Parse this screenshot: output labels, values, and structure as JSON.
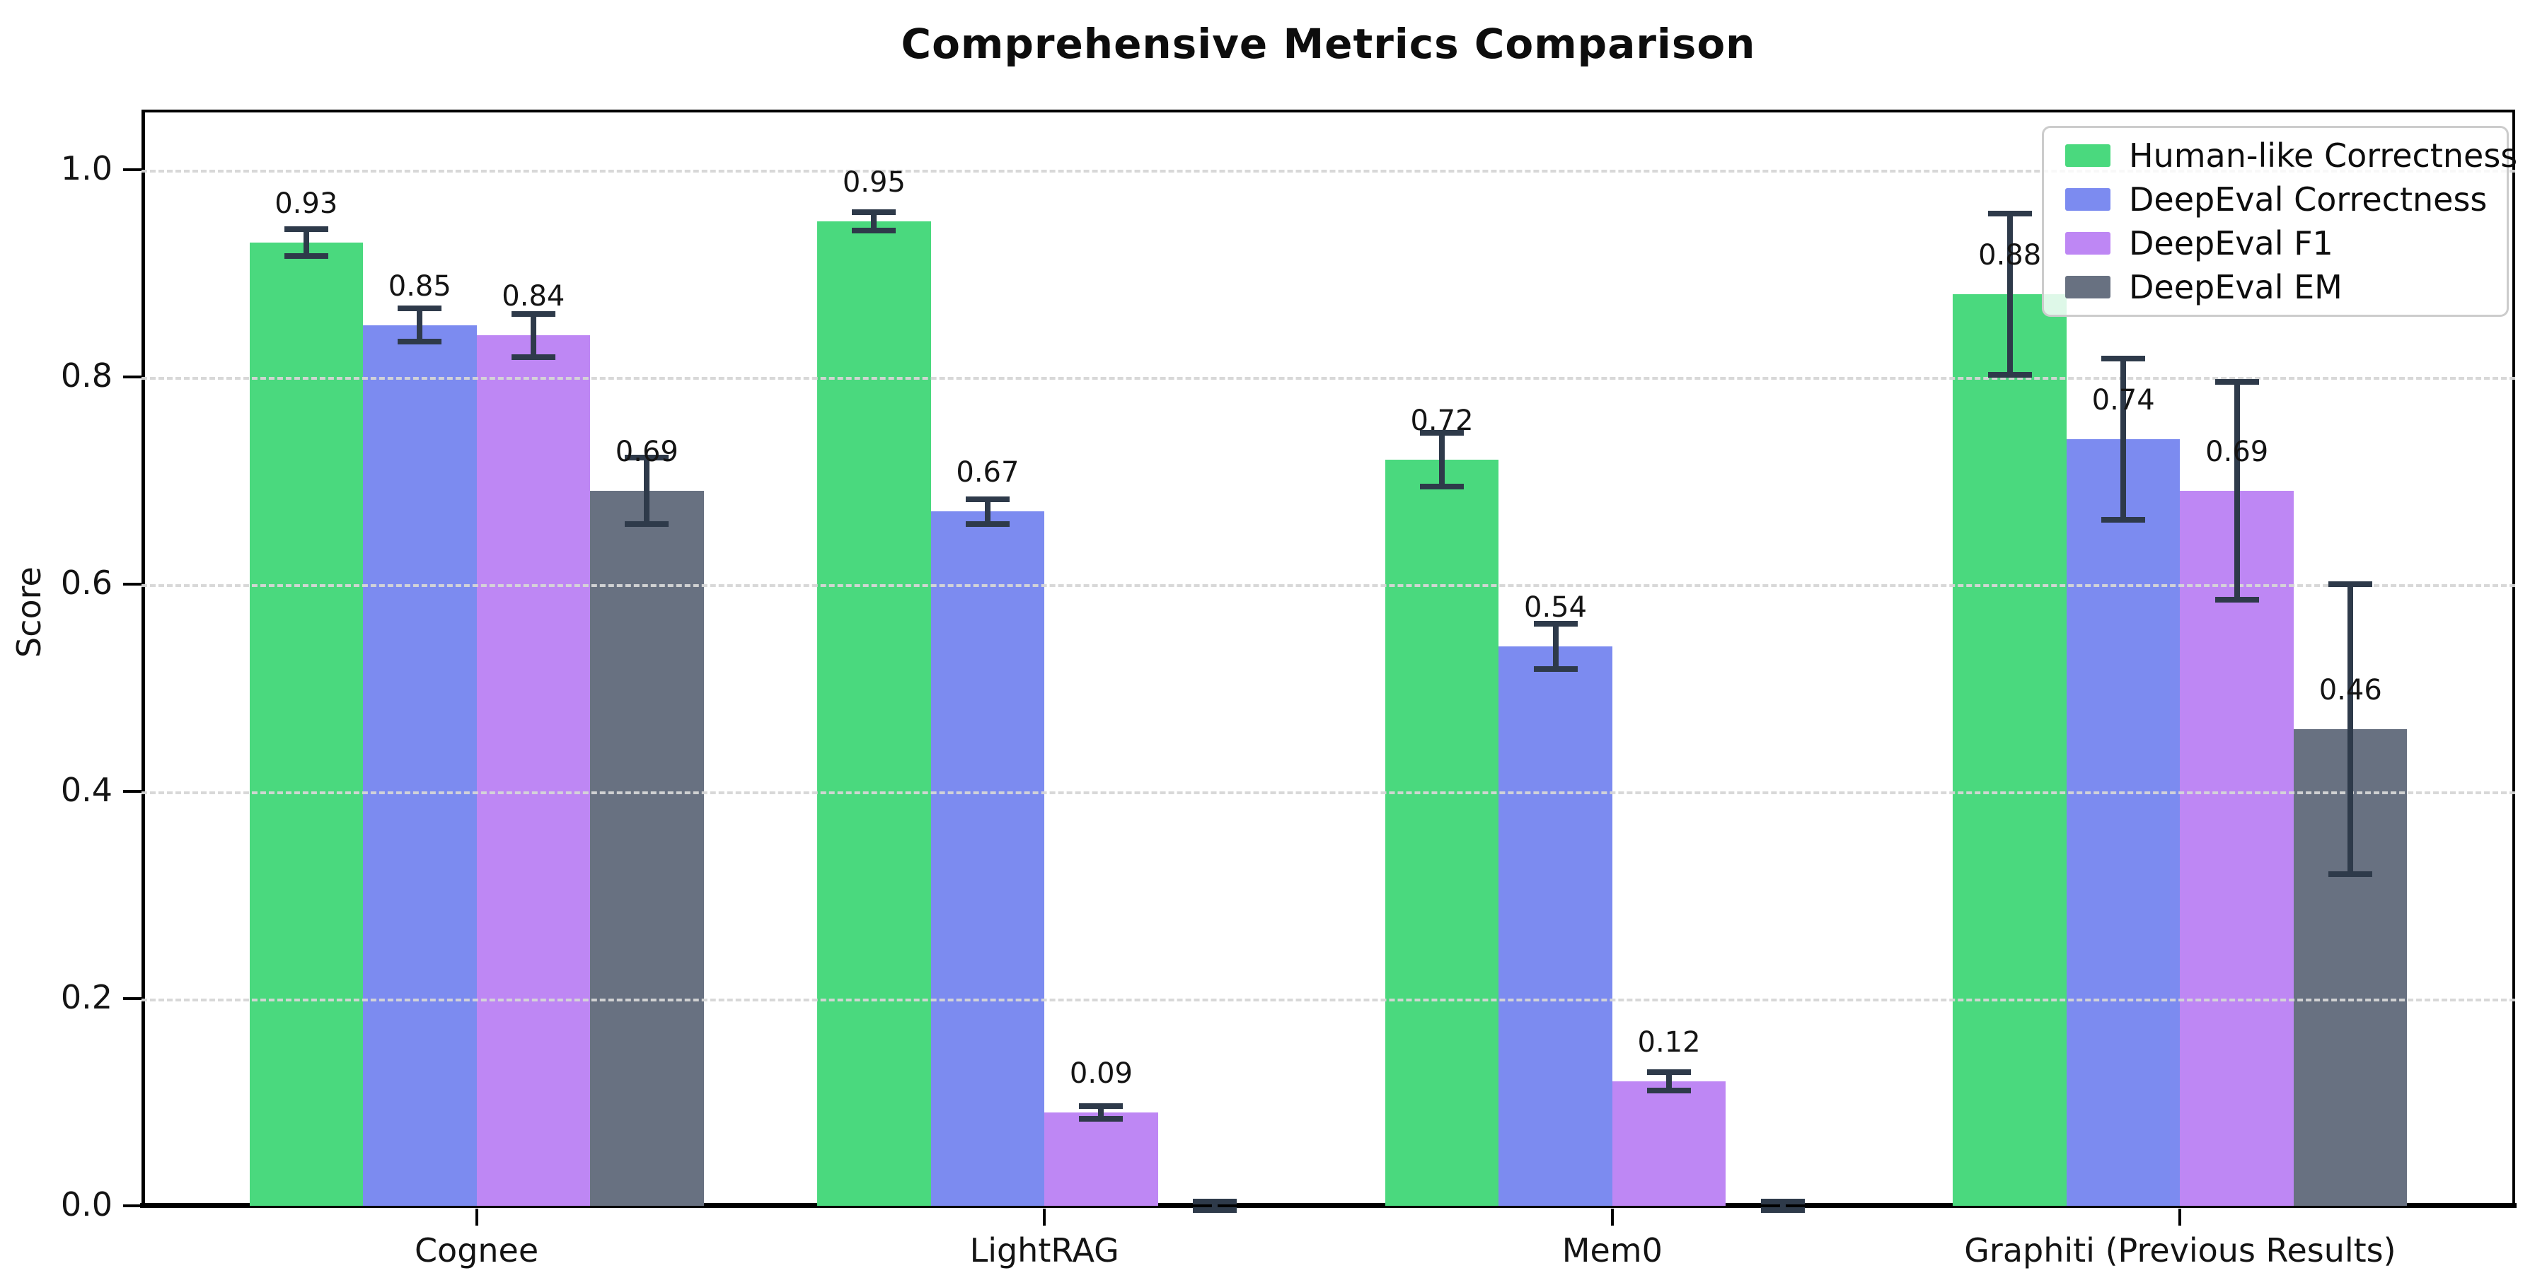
{
  "figure": {
    "title": "Comprehensive Metrics Comparison",
    "ylabel": "Score"
  },
  "chart_data": {
    "type": "bar",
    "title": "Comprehensive Metrics Comparison",
    "xlabel": "",
    "ylabel": "Score",
    "categories": [
      "Cognee",
      "LightRAG",
      "Mem0",
      "Graphiti (Previous Results)"
    ],
    "y_ticks": [
      "0.0",
      "0.2",
      "0.4",
      "0.6",
      "0.8",
      "1.0"
    ],
    "ylim": [
      0.0,
      1.06
    ],
    "grid": "horizontal-dashed",
    "legend_position": "upper-right",
    "error_bar_color": "#2e3a4a",
    "series": [
      {
        "name": "Human-like Correctness",
        "color": "#4ad97e",
        "values": [
          0.93,
          0.95,
          0.72,
          0.88
        ],
        "errors": [
          0.013,
          0.009,
          0.026,
          0.078
        ],
        "labels": [
          "0.93",
          "0.95",
          "0.72",
          "0.88"
        ]
      },
      {
        "name": "DeepEval Correctness",
        "color": "#7c8bf0",
        "values": [
          0.85,
          0.67,
          0.54,
          0.74
        ],
        "errors": [
          0.016,
          0.012,
          0.022,
          0.078
        ],
        "labels": [
          "0.85",
          "0.67",
          "0.54",
          "0.74"
        ]
      },
      {
        "name": "DeepEval F1",
        "color": "#be87f4",
        "values": [
          0.84,
          0.09,
          0.12,
          0.69
        ],
        "errors": [
          0.021,
          0.006,
          0.009,
          0.105
        ],
        "labels": [
          "0.84",
          "0.09",
          "0.12",
          "0.69"
        ]
      },
      {
        "name": "DeepEval EM",
        "color": "#687181",
        "values": [
          0.69,
          0.0,
          0.0,
          0.46
        ],
        "errors": [
          0.032,
          0.004,
          0.004,
          0.14
        ],
        "labels": [
          "0.69",
          "",
          "",
          "0.46"
        ]
      }
    ]
  }
}
